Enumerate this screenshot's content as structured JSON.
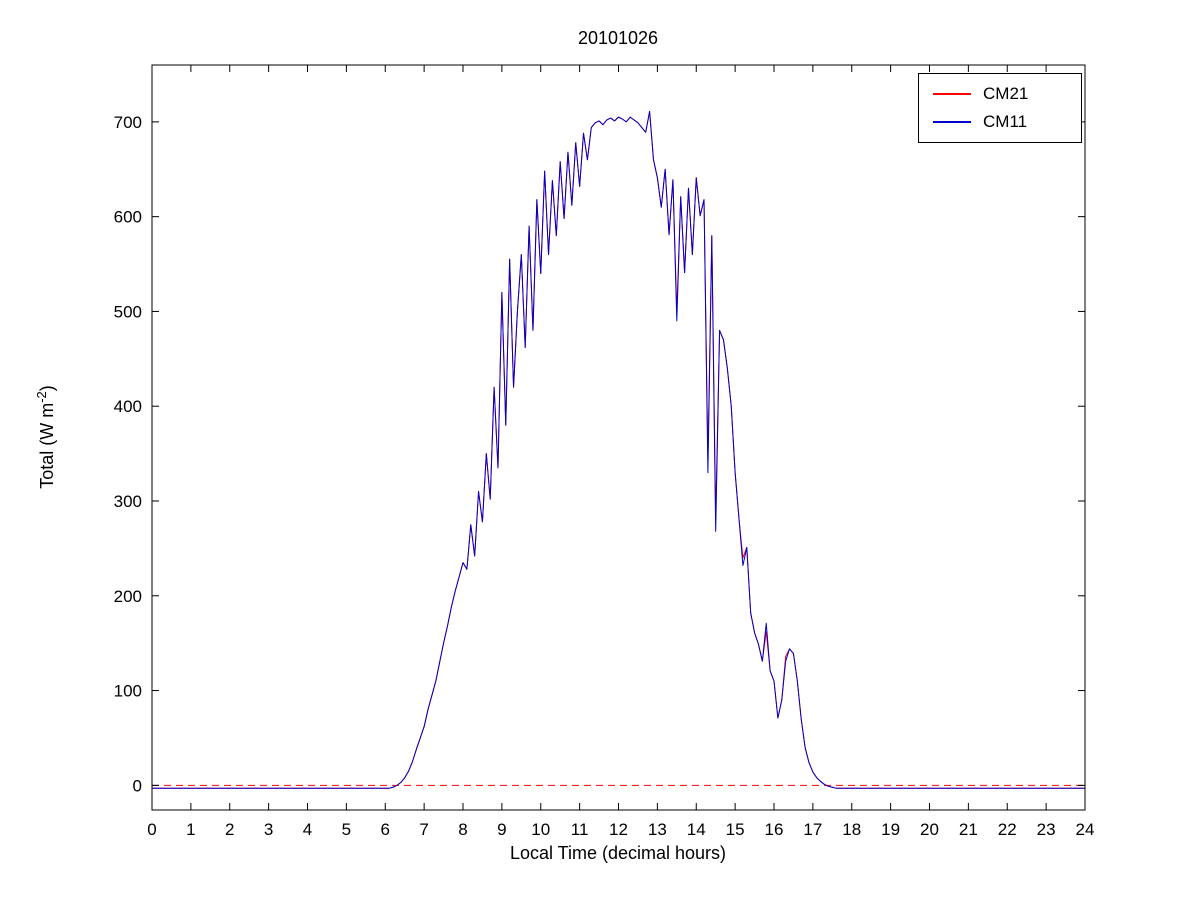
{
  "chart_data": {
    "type": "line",
    "title": "20101026",
    "xlabel": "Local Time (decimal hours)",
    "ylabel": "Total (W m^-2)",
    "ylabel_parts": {
      "pre": "Total (W m",
      "sup": "-2",
      "post": ")"
    },
    "xlim": [
      0,
      24
    ],
    "ylim": [
      -26,
      760
    ],
    "xticks": [
      0,
      1,
      2,
      3,
      4,
      5,
      6,
      7,
      8,
      9,
      10,
      11,
      12,
      13,
      14,
      15,
      16,
      17,
      18,
      19,
      20,
      21,
      22,
      23,
      24
    ],
    "yticks": [
      0,
      100,
      200,
      300,
      400,
      500,
      600,
      700
    ],
    "grid": false,
    "legend_position": "top-right",
    "x_start": 0,
    "x_step": 0.1,
    "zero_line": {
      "y": 0,
      "style": "dashed",
      "color": "#ff0000"
    },
    "series": [
      {
        "name": "CM21",
        "color": "#ff0000",
        "values": [
          -3,
          -3,
          -3,
          -3,
          -3,
          -3,
          -3,
          -3,
          -3,
          -3,
          -3,
          -3,
          -3,
          -3,
          -3,
          -3,
          -3,
          -3,
          -3,
          -3,
          -3,
          -3,
          -3,
          -3,
          -3,
          -3,
          -3,
          -3,
          -3,
          -3,
          -3,
          -3,
          -3,
          -3,
          -3,
          -3,
          -3,
          -3,
          -3,
          -3,
          -3,
          -3,
          -3,
          -3,
          -3,
          -3,
          -3,
          -3,
          -3,
          -3,
          -3,
          -3,
          -3,
          -3,
          -3,
          -3,
          -3,
          -3,
          -3,
          -3,
          -3,
          -3,
          -2,
          0,
          3,
          8,
          15,
          25,
          38,
          50,
          62,
          80,
          95,
          110,
          130,
          150,
          168,
          188,
          205,
          220,
          235,
          228,
          275,
          242,
          310,
          278,
          350,
          302,
          420,
          335,
          520,
          380,
          555,
          420,
          500,
          560,
          462,
          590,
          480,
          618,
          540,
          648,
          560,
          638,
          580,
          658,
          598,
          668,
          612,
          678,
          632,
          688,
          660,
          694,
          699,
          701,
          697,
          702,
          704,
          701,
          705,
          703,
          700,
          705,
          702,
          699,
          694,
          689,
          711,
          660,
          641,
          610,
          650,
          581,
          639,
          500,
          621,
          541,
          630,
          560,
          641,
          601,
          618,
          345,
          580,
          283,
          480,
          470,
          440,
          400,
          330,
          281,
          240,
          251,
          182,
          161,
          149,
          131,
          162,
          121,
          110,
          71,
          90,
          136,
          144,
          139,
          110,
          70,
          40,
          24,
          14,
          8,
          4,
          1,
          -1,
          -2,
          -3,
          -3,
          -3,
          -3,
          -3,
          -3,
          -3,
          -3,
          -3,
          -3,
          -3,
          -3,
          -3,
          -3,
          -3,
          -3,
          -3,
          -3,
          -3,
          -3,
          -3,
          -3,
          -3,
          -3,
          -3,
          -3,
          -3,
          -3,
          -3,
          -3,
          -3,
          -3,
          -3,
          -3,
          -3,
          -3,
          -3,
          -3,
          -3,
          -3,
          -3,
          -3,
          -3,
          -3,
          -3,
          -3,
          -3,
          -3,
          -3,
          -3,
          -3,
          -3,
          -3,
          -3,
          -3,
          -3,
          -3,
          -3,
          -3,
          -3,
          -3,
          -3,
          -3,
          -3,
          -3
        ]
      },
      {
        "name": "CM11",
        "color": "#0000cc",
        "values": [
          -3,
          -3,
          -3,
          -3,
          -3,
          -3,
          -3,
          -3,
          -3,
          -3,
          -3,
          -3,
          -3,
          -3,
          -3,
          -3,
          -3,
          -3,
          -3,
          -3,
          -3,
          -3,
          -3,
          -3,
          -3,
          -3,
          -3,
          -3,
          -3,
          -3,
          -3,
          -3,
          -3,
          -3,
          -3,
          -3,
          -3,
          -3,
          -3,
          -3,
          -3,
          -3,
          -3,
          -3,
          -3,
          -3,
          -3,
          -3,
          -3,
          -3,
          -3,
          -3,
          -3,
          -3,
          -3,
          -3,
          -3,
          -3,
          -3,
          -3,
          -3,
          -3,
          -2,
          0,
          3,
          8,
          15,
          25,
          38,
          50,
          62,
          80,
          95,
          110,
          130,
          150,
          168,
          188,
          205,
          220,
          235,
          228,
          275,
          242,
          310,
          278,
          350,
          302,
          420,
          335,
          520,
          380,
          555,
          420,
          500,
          560,
          462,
          590,
          480,
          618,
          540,
          648,
          560,
          638,
          580,
          658,
          598,
          668,
          612,
          678,
          632,
          688,
          660,
          694,
          699,
          701,
          697,
          702,
          704,
          701,
          705,
          703,
          700,
          705,
          702,
          699,
          694,
          689,
          711,
          660,
          641,
          610,
          650,
          581,
          639,
          490,
          621,
          541,
          630,
          560,
          641,
          601,
          618,
          330,
          580,
          268,
          480,
          470,
          440,
          400,
          330,
          281,
          232,
          251,
          182,
          161,
          149,
          131,
          171,
          121,
          110,
          71,
          90,
          131,
          144,
          139,
          110,
          70,
          40,
          24,
          14,
          8,
          4,
          1,
          -1,
          -2,
          -3,
          -3,
          -3,
          -3,
          -3,
          -3,
          -3,
          -3,
          -3,
          -3,
          -3,
          -3,
          -3,
          -3,
          -3,
          -3,
          -3,
          -3,
          -3,
          -3,
          -3,
          -3,
          -3,
          -3,
          -3,
          -3,
          -3,
          -3,
          -3,
          -3,
          -3,
          -3,
          -3,
          -3,
          -3,
          -3,
          -3,
          -3,
          -3,
          -3,
          -3,
          -3,
          -3,
          -3,
          -3,
          -3,
          -3,
          -3,
          -3,
          -3,
          -3,
          -3,
          -3,
          -3,
          -3,
          -3,
          -3,
          -3,
          -3,
          -3,
          -3,
          -3,
          -3,
          -3,
          -3
        ]
      }
    ]
  }
}
